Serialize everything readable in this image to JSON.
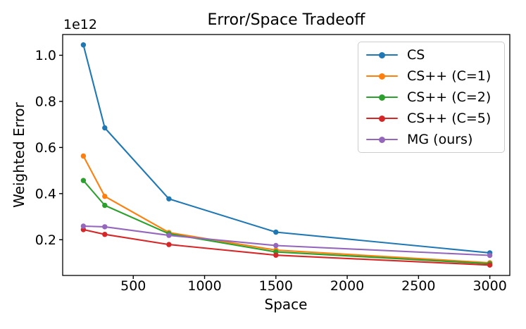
{
  "chart_data": {
    "type": "line",
    "title": "Error/Space Tradeoff",
    "xlabel": "Space",
    "ylabel": "Weighted Error",
    "y_offset_text": "1e12",
    "units_note": "y values are in units of 1e12",
    "x": [
      150,
      300,
      750,
      1500,
      3000
    ],
    "series": [
      {
        "name": "CS",
        "color": "#1f77b4",
        "values": [
          1.045,
          0.685,
          0.377,
          0.233,
          0.143
        ]
      },
      {
        "name": "CS++ (C=1)",
        "color": "#ff7f0e",
        "values": [
          0.563,
          0.388,
          0.231,
          0.155,
          0.1
        ]
      },
      {
        "name": "CS++ (C=2)",
        "color": "#2ca02c",
        "values": [
          0.457,
          0.349,
          0.226,
          0.147,
          0.096
        ]
      },
      {
        "name": "CS++ (C=5)",
        "color": "#d62728",
        "values": [
          0.244,
          0.223,
          0.179,
          0.133,
          0.09
        ]
      },
      {
        "name": "MG (ours)",
        "color": "#9467bd",
        "values": [
          0.259,
          0.256,
          0.219,
          0.175,
          0.132
        ]
      }
    ],
    "xticks": [
      500,
      1000,
      1500,
      2000,
      2500,
      3000
    ],
    "xtick_labels": [
      "500",
      "1000",
      "1500",
      "2000",
      "2500",
      "3000"
    ],
    "yticks": [
      0.2,
      0.4,
      0.6,
      0.8,
      1.0
    ],
    "ytick_labels": [
      "0.2",
      "0.4",
      "0.6",
      "0.8",
      "1.0"
    ],
    "xlim": [
      5,
      3140
    ],
    "ylim": [
      0.045,
      1.09
    ],
    "grid": false,
    "legend_position": "upper right",
    "marker": "circle",
    "axis_color": "#000000"
  }
}
